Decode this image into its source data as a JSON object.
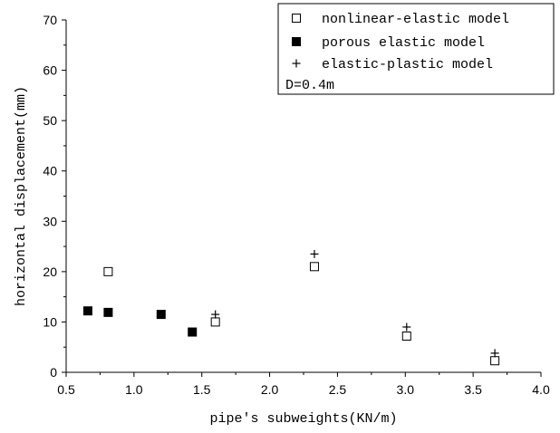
{
  "chart_data": {
    "type": "scatter",
    "xlabel": "pipe's subweights(KN/m)",
    "ylabel": "horizontal displacement(mm)",
    "xlim": [
      0.5,
      4.0
    ],
    "ylim": [
      0,
      70
    ],
    "x_ticks": [
      "0.5",
      "1.0",
      "1.5",
      "2.0",
      "2.5",
      "3.0",
      "3.5",
      "4.0"
    ],
    "y_ticks": [
      "0",
      "10",
      "20",
      "30",
      "40",
      "50",
      "60",
      "70"
    ],
    "grid": false,
    "legend_position": "top-right",
    "annotation": "D=0.4m",
    "series": [
      {
        "name": "nonlinear-elastic model",
        "marker": "open-square",
        "color": "#000000",
        "points": [
          {
            "x": 0.81,
            "y": 20.0
          },
          {
            "x": 1.6,
            "y": 10.0
          },
          {
            "x": 2.33,
            "y": 21.0
          },
          {
            "x": 3.01,
            "y": 7.2
          },
          {
            "x": 3.66,
            "y": 2.3
          }
        ]
      },
      {
        "name": "porous elastic model",
        "marker": "filled-square",
        "color": "#000000",
        "points": [
          {
            "x": 0.66,
            "y": 12.2
          },
          {
            "x": 0.81,
            "y": 11.9
          },
          {
            "x": 1.2,
            "y": 11.5
          },
          {
            "x": 1.43,
            "y": 8.0
          }
        ]
      },
      {
        "name": "elastic-plastic model",
        "marker": "plus",
        "color": "#000000",
        "points": [
          {
            "x": 1.6,
            "y": 11.5
          },
          {
            "x": 2.33,
            "y": 23.5
          },
          {
            "x": 3.01,
            "y": 9.0
          },
          {
            "x": 3.66,
            "y": 3.8
          }
        ]
      }
    ]
  }
}
